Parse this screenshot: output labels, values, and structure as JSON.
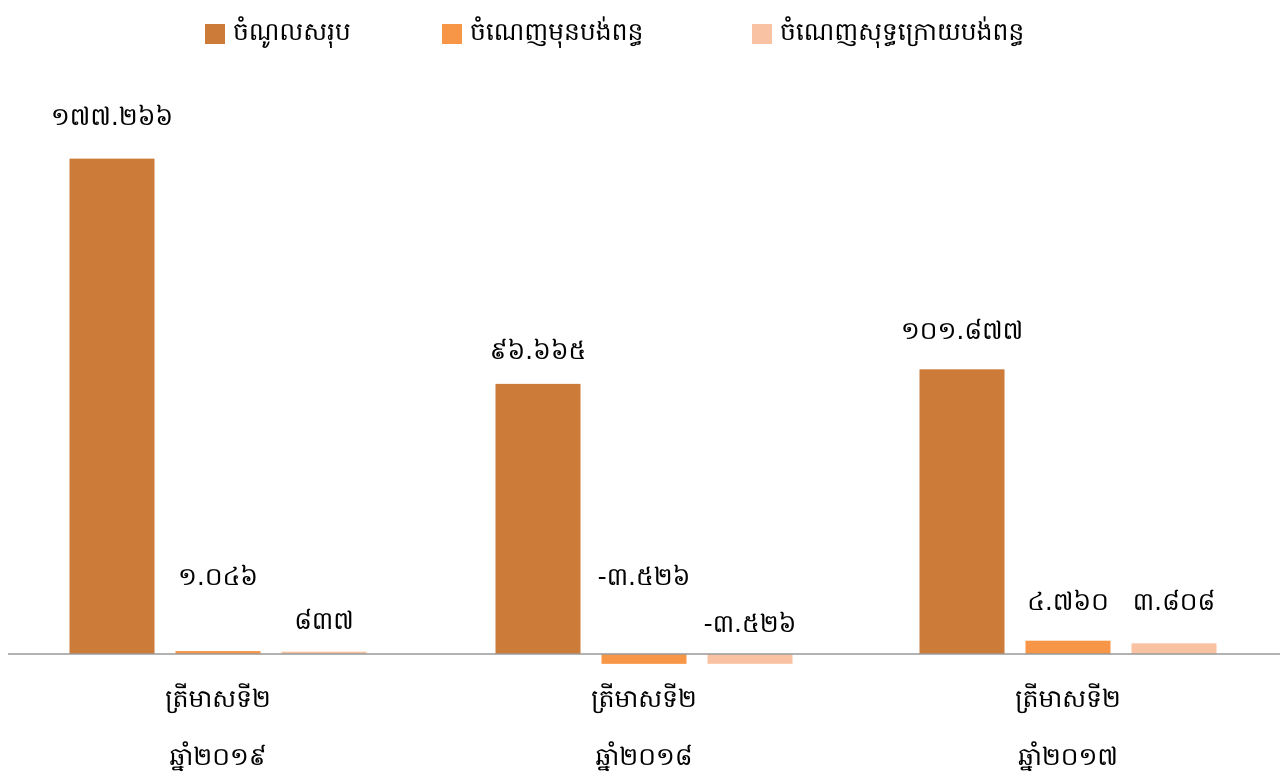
{
  "chart_data": {
    "type": "bar",
    "categories": [
      [
        "ត្រីមាសទី២",
        "ឆ្នាំ២០១៩"
      ],
      [
        "ត្រីមាសទី២",
        "ឆ្នាំ២០១៨"
      ],
      [
        "ត្រីមាសទី២",
        "ឆ្នាំ២០១៧"
      ]
    ],
    "series": [
      {
        "name": "ចំណូលសរុប",
        "color": "#CD7B38",
        "values": [
          177266,
          96665,
          101877
        ],
        "value_labels": [
          "១៧៧.២៦៦",
          "៩៦.៦៦៥",
          "១០១.៨៧៧"
        ]
      },
      {
        "name": "ចំណេញមុនបង់ពន្ធ",
        "color": "#F79646",
        "values": [
          1046,
          -3526,
          4760
        ],
        "value_labels": [
          "១.០៤៦",
          "-៣.៥២៦",
          "៤.៧៦០"
        ]
      },
      {
        "name": "ចំណេញសុទ្ធក្រោយបង់ពន្ធ",
        "color": "#F9C3A3",
        "values": [
          837,
          -3526,
          3808
        ],
        "value_labels": [
          "៨៣៧",
          "-៣.៥២៦",
          "៣.៨០៨"
        ]
      }
    ],
    "ylim": [
      -20000,
      180000
    ],
    "legend": "top"
  }
}
